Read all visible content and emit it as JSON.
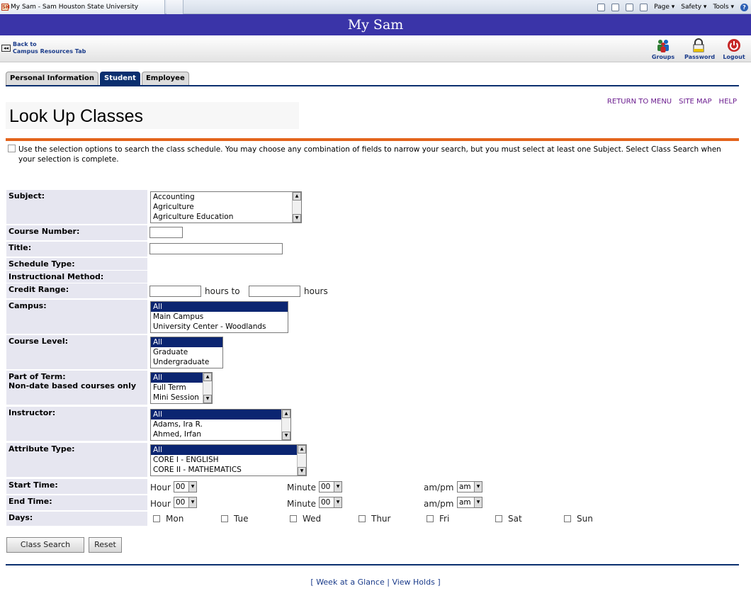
{
  "browser": {
    "tab_title": "My Sam - Sam Houston State University",
    "favicon_text": "SH",
    "tools": {
      "page": "Page ▾",
      "safety": "Safety ▾",
      "tools": "Tools ▾"
    }
  },
  "header": {
    "title": "My Sam"
  },
  "nav": {
    "back_line1": "Back to",
    "back_line2": "Campus Resources Tab",
    "icons": [
      {
        "label": "Groups",
        "icon": "groups-icon"
      },
      {
        "label": "Password",
        "icon": "password-icon"
      },
      {
        "label": "Logout",
        "icon": "logout-icon"
      }
    ]
  },
  "tabs": [
    {
      "label": "Personal Information",
      "active": false
    },
    {
      "label": "Student",
      "active": true
    },
    {
      "label": "Employee",
      "active": false
    }
  ],
  "top_links": [
    "RETURN TO MENU",
    "SITE MAP",
    "HELP"
  ],
  "page_title": "Look Up Classes",
  "info_text": "Use the selection options to search the class schedule. You may choose any combination of fields to narrow your search, but you must select at least one Subject. Select Class Search when your selection is complete.",
  "form": {
    "labels": {
      "subject": "Subject:",
      "course_number": "Course Number:",
      "title": "Title:",
      "schedule_type": "Schedule Type:",
      "instructional_method": "Instructional Method:",
      "credit_range": "Credit Range:",
      "campus": "Campus:",
      "course_level": "Course Level:",
      "part_of_term_1": "Part of Term:",
      "part_of_term_2": "Non-date based courses only",
      "instructor": "Instructor:",
      "attribute_type": "Attribute Type:",
      "start_time": "Start Time:",
      "end_time": "End Time:",
      "days": "Days:"
    },
    "subject_options": [
      "Accounting",
      "Agriculture",
      "Agriculture Education"
    ],
    "campus_options": [
      "All",
      "Main Campus",
      "University Center - Woodlands"
    ],
    "course_level_options": [
      "All",
      "Graduate",
      "Undergraduate"
    ],
    "part_of_term_options": [
      "All",
      "Full Term",
      "Mini Session"
    ],
    "instructor_options": [
      "All",
      "Adams, Ira R.",
      "Ahmed, Irfan"
    ],
    "attribute_options": [
      "All",
      "CORE I - ENGLISH",
      "CORE II - MATHEMATICS"
    ],
    "credit_hours_to": "hours to",
    "credit_hours": "hours",
    "time": {
      "hour_label": "Hour",
      "minute_label": "Minute",
      "ampm_label": "am/pm",
      "hour_value": "00",
      "minute_value": "00",
      "ampm_value": "am"
    },
    "days": [
      "Mon",
      "Tue",
      "Wed",
      "Thur",
      "Fri",
      "Sat",
      "Sun"
    ]
  },
  "buttons": {
    "class_search": "Class Search",
    "reset": "Reset"
  },
  "bottom_links": {
    "open": "[",
    "week": "Week at a Glance",
    "sep": "|",
    "holds": "View Holds",
    "close": "]"
  }
}
